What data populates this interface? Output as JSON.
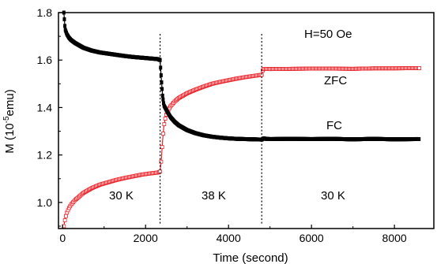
{
  "chart_data": {
    "type": "scatter",
    "title": "",
    "xlabel": "Time (second)",
    "ylabel_main": "M (10",
    "ylabel_exp": "-5",
    "ylabel_unit": "emu)",
    "xlim": [
      -100,
      8950
    ],
    "ylim": [
      0.89,
      1.8
    ],
    "xticks": [
      0,
      2000,
      4000,
      6000,
      8000
    ],
    "xtick_labels": [
      "0",
      "2000",
      "4000",
      "6000",
      "8000"
    ],
    "yticks": [
      1.0,
      1.2,
      1.4,
      1.6,
      1.8
    ],
    "ytick_labels": [
      "1.0",
      "1.2",
      "1.4",
      "1.6",
      "1.8"
    ],
    "grid": false,
    "annotations": {
      "field": "H=50 Oe",
      "zfc": "ZFC",
      "fc": "FC",
      "seg1": "30 K",
      "seg2": "38 K",
      "seg3": "30 K"
    },
    "vlines": [
      2350,
      4800
    ],
    "series": [
      {
        "name": "ZFC",
        "color": "#e8242b",
        "marker": "open-square",
        "segments": [
          {
            "x": [
              30,
              60,
              100,
              150,
              200,
              300,
              400,
              500,
              700,
              900,
              1100,
              1300,
              1500,
              1700,
              1900,
              2100,
              2300,
              2350
            ],
            "y": [
              0.9,
              0.93,
              0.955,
              0.975,
              0.99,
              1.01,
              1.025,
              1.04,
              1.06,
              1.075,
              1.085,
              1.095,
              1.103,
              1.11,
              1.117,
              1.122,
              1.126,
              1.13
            ]
          },
          {
            "x": [
              2350,
              2380,
              2410,
              2440,
              2470,
              2500,
              2550,
              2600,
              2700,
              2800,
              3000,
              3200,
              3400,
              3600,
              3800,
              4000,
              4200,
              4400,
              4600,
              4800
            ],
            "y": [
              1.13,
              1.18,
              1.26,
              1.32,
              1.35,
              1.37,
              1.39,
              1.405,
              1.425,
              1.44,
              1.46,
              1.475,
              1.488,
              1.5,
              1.508,
              1.515,
              1.522,
              1.528,
              1.533,
              1.538
            ]
          },
          {
            "x": [
              4800,
              4820,
              4850,
              4900,
              5000,
              5500,
              6000,
              6500,
              7000,
              7500,
              8000,
              8500,
              8600
            ],
            "y": [
              1.538,
              1.555,
              1.562,
              1.563,
              1.562,
              1.563,
              1.564,
              1.564,
              1.563,
              1.565,
              1.565,
              1.566,
              1.566
            ]
          }
        ]
      },
      {
        "name": "FC",
        "color": "#000000",
        "marker": "filled-square",
        "segments": [
          {
            "x": [
              30,
              60,
              100,
              150,
              200,
              300,
              400,
              500,
              700,
              900,
              1100,
              1300,
              1500,
              1700,
              1900,
              2100,
              2300,
              2350
            ],
            "y": [
              1.8,
              1.73,
              1.71,
              1.695,
              1.685,
              1.672,
              1.662,
              1.652,
              1.64,
              1.632,
              1.627,
              1.622,
              1.617,
              1.613,
              1.61,
              1.607,
              1.604,
              1.6
            ]
          },
          {
            "x": [
              2350,
              2380,
              2410,
              2440,
              2470,
              2500,
              2550,
              2600,
              2700,
              2800,
              3000,
              3200,
              3400,
              3600,
              3800,
              4000,
              4200,
              4400,
              4600,
              4800
            ],
            "y": [
              1.6,
              1.52,
              1.45,
              1.41,
              1.4,
              1.39,
              1.375,
              1.36,
              1.34,
              1.325,
              1.305,
              1.292,
              1.283,
              1.277,
              1.273,
              1.27,
              1.268,
              1.267,
              1.266,
              1.265
            ]
          },
          {
            "x": [
              4800,
              4850,
              4900,
              5000,
              5500,
              6000,
              6500,
              7000,
              7500,
              8000,
              8500,
              8600
            ],
            "y": [
              1.265,
              1.27,
              1.268,
              1.267,
              1.268,
              1.267,
              1.268,
              1.266,
              1.268,
              1.266,
              1.267,
              1.267
            ]
          }
        ]
      }
    ]
  }
}
